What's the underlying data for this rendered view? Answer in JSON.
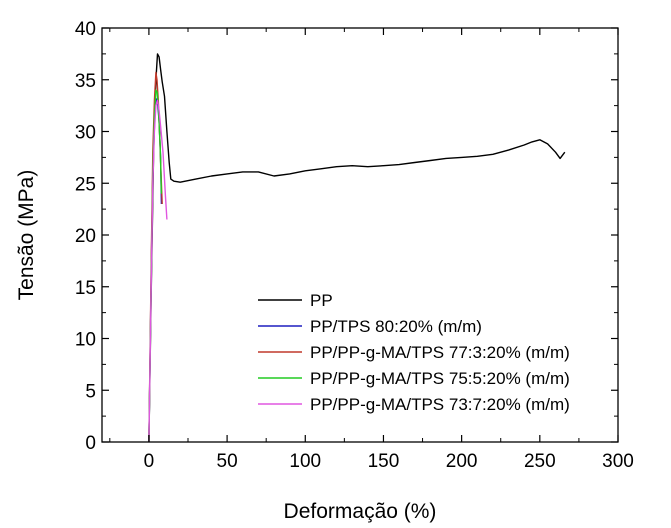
{
  "chart_data": {
    "type": "line",
    "title": "",
    "xlabel": "Deformação (%)",
    "ylabel": "Tensão (MPa)",
    "xlim": [
      -30,
      300
    ],
    "ylim": [
      0,
      40
    ],
    "x_ticks": [
      0,
      50,
      100,
      150,
      200,
      250,
      300
    ],
    "y_ticks": [
      0,
      5,
      10,
      15,
      20,
      25,
      30,
      35,
      40
    ],
    "grid": false,
    "legend_position": "bottom-right",
    "series": [
      {
        "name": "PP",
        "color": "#000000",
        "x": [
          0,
          1.5,
          3,
          4.5,
          5.5,
          6.5,
          7.5,
          8.5,
          10,
          11.5,
          13,
          14,
          16,
          20,
          30,
          40,
          50,
          60,
          70,
          80,
          90,
          100,
          110,
          120,
          130,
          140,
          150,
          160,
          170,
          180,
          190,
          200,
          210,
          220,
          230,
          240,
          245,
          250,
          255,
          260,
          263,
          266
        ],
        "y": [
          0,
          15,
          28,
          35,
          37.5,
          37.2,
          36,
          34.8,
          33.4,
          30,
          27,
          25.4,
          25.2,
          25.1,
          25.4,
          25.7,
          25.9,
          26.1,
          26.1,
          25.7,
          25.9,
          26.2,
          26.4,
          26.6,
          26.7,
          26.6,
          26.7,
          26.8,
          27,
          27.2,
          27.4,
          27.5,
          27.6,
          27.8,
          28.2,
          28.7,
          29,
          29.2,
          28.8,
          28,
          27.4,
          28
        ]
      },
      {
        "name": "PP/TPS 80:20% (m/m)",
        "color": "#1f1fbf",
        "x": [
          0,
          1.5,
          2.5,
          3.5,
          4.5,
          5.5,
          6.5,
          7.5,
          8
        ],
        "y": [
          0,
          17,
          26,
          31,
          33.2,
          32.8,
          31,
          27.5,
          23
        ]
      },
      {
        "name": "PP/PP-g-MA/TPS 77:3:20% (m/m)",
        "color": "#c0392b",
        "x": [
          0,
          1.5,
          2.5,
          3.5,
          4.5,
          5.2,
          6,
          7,
          8,
          8.5
        ],
        "y": [
          0,
          18,
          28,
          33,
          35.7,
          35,
          33,
          29,
          25,
          23
        ]
      },
      {
        "name": "PP/PP-g-MA/TPS 75:5:20% (m/m)",
        "color": "#22cc22",
        "x": [
          0,
          1.5,
          2.5,
          3.5,
          4.5,
          5.3,
          6.2,
          7.2,
          8
        ],
        "y": [
          0,
          16,
          26,
          31.5,
          34,
          33.8,
          32,
          28.5,
          24
        ]
      },
      {
        "name": "PP/PP-g-MA/TPS 73:7:20% (m/m)",
        "color": "#e056e0",
        "x": [
          0,
          1.5,
          2.5,
          3.5,
          4.5,
          5.5,
          6.5,
          7.5,
          9,
          10.5,
          11.5
        ],
        "y": [
          0,
          16,
          25,
          30,
          32.5,
          33,
          32,
          30.5,
          28,
          24,
          21.5
        ]
      }
    ]
  }
}
